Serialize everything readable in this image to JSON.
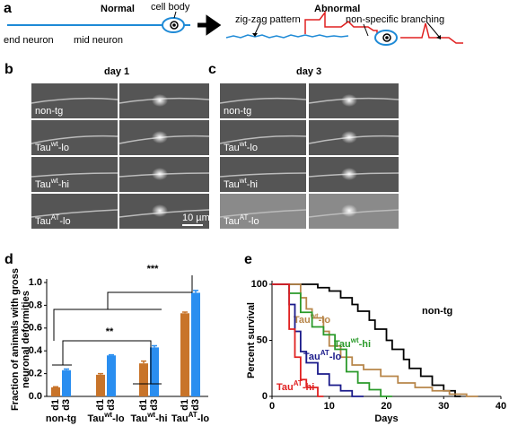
{
  "panel_a": {
    "letter": "a",
    "normal_title": "Normal",
    "abnormal_title": "Abnormal",
    "end_neuron": "end neuron",
    "mid_neuron": "mid neuron",
    "cell_body": "cell body",
    "zigzag": "zig-zag pattern",
    "branching": "non-specific branching"
  },
  "panel_b": {
    "letter": "b",
    "title": "day 1",
    "scale_bar": "10 µm",
    "rows": [
      [
        "non-tg"
      ],
      [
        "Tau",
        "wt",
        "-lo"
      ],
      [
        "Tau",
        "wt",
        "-hi"
      ],
      [
        "Tau",
        "AT",
        "-lo"
      ]
    ]
  },
  "panel_c": {
    "letter": "c",
    "title": "day 3",
    "rows": [
      [
        "non-tg"
      ],
      [
        "Tau",
        "wt",
        "-lo"
      ],
      [
        "Tau",
        "wt",
        "-hi"
      ],
      [
        "Tau",
        "AT",
        "-lo"
      ]
    ]
  },
  "chart_data": [
    {
      "type": "bar",
      "letter": "d",
      "ylabel": [
        "Fraction of animals with gross",
        "neuronal deformities"
      ],
      "categories": [
        [
          "non-tg"
        ],
        [
          "Tau",
          "wt",
          "-lo"
        ],
        [
          "Tau",
          "wt",
          "-hi"
        ],
        [
          "Tau",
          "AT",
          "-lo"
        ]
      ],
      "series": [
        {
          "name": "d1",
          "color": "#c8742a",
          "values": [
            0.08,
            0.19,
            0.29,
            0.73
          ],
          "errors": [
            0.005,
            0.01,
            0.02,
            0.01
          ]
        },
        {
          "name": "d3",
          "color": "#2a8ef0",
          "values": [
            0.23,
            0.36,
            0.43,
            0.91
          ],
          "errors": [
            0.01,
            0.005,
            0.015,
            0.02
          ]
        }
      ],
      "ylim": [
        0,
        1
      ],
      "yticks": [
        {
          "value": 0,
          "label": "0.0"
        },
        {
          "value": 0.2,
          "label": "0.2"
        },
        {
          "value": 0.4,
          "label": "0.4"
        },
        {
          "value": 0.6,
          "label": "0.6"
        },
        {
          "value": 0.8,
          "label": "0.8"
        },
        {
          "value": 1,
          "label": "1.0"
        }
      ],
      "annotations": [
        "**",
        "***"
      ]
    },
    {
      "type": "line",
      "letter": "e",
      "xlabel": "Days",
      "ylabel": "Percent survival",
      "xlim": [
        0,
        40
      ],
      "xticks": [
        0,
        10,
        20,
        30,
        40
      ],
      "ylim": [
        0,
        100
      ],
      "yticks": [
        0,
        50,
        100
      ],
      "series": [
        {
          "name": [
            "non-tg"
          ],
          "color": "#000000",
          "x": [
            0,
            8,
            8,
            10,
            10,
            12,
            12,
            14,
            14,
            15,
            15,
            17,
            17,
            18,
            18,
            20,
            20,
            21,
            21,
            23,
            23,
            24,
            24,
            26,
            26,
            28,
            28,
            30,
            30,
            32,
            32,
            33
          ],
          "values": [
            100,
            100,
            97,
            97,
            94,
            94,
            88,
            88,
            82,
            82,
            76,
            76,
            68,
            68,
            60,
            60,
            50,
            50,
            42,
            42,
            33,
            33,
            25,
            25,
            18,
            18,
            10,
            10,
            5,
            5,
            0,
            0
          ]
        },
        {
          "name": [
            "Tau",
            "wt",
            "-lo"
          ],
          "color": "#b8864a",
          "x": [
            0,
            5,
            5,
            6,
            6,
            7,
            7,
            9,
            9,
            10,
            10,
            12,
            12,
            14,
            14,
            16,
            16,
            19,
            19,
            22,
            22,
            25,
            25,
            28,
            28,
            31,
            31,
            34,
            34,
            36
          ],
          "values": [
            100,
            100,
            88,
            88,
            78,
            78,
            70,
            70,
            58,
            58,
            45,
            45,
            35,
            35,
            28,
            28,
            24,
            24,
            18,
            18,
            12,
            12,
            8,
            8,
            5,
            5,
            2,
            2,
            0,
            0
          ]
        },
        {
          "name": [
            "Tau",
            "wt",
            "-hi"
          ],
          "color": "#2a9a2a",
          "x": [
            0,
            3,
            3,
            5,
            5,
            7,
            7,
            9,
            9,
            11,
            11,
            13,
            13,
            15,
            15,
            17,
            17,
            19,
            19,
            21
          ],
          "values": [
            100,
            100,
            92,
            92,
            75,
            75,
            62,
            62,
            55,
            55,
            42,
            42,
            22,
            22,
            12,
            12,
            6,
            6,
            0,
            0
          ]
        },
        {
          "name": [
            "Tau",
            "AT",
            "-lo"
          ],
          "color": "#1a1a8a",
          "x": [
            0,
            3,
            3,
            4,
            4,
            5,
            5,
            6,
            6,
            8,
            8,
            10,
            10,
            12,
            12,
            14,
            14,
            16
          ],
          "values": [
            100,
            100,
            82,
            82,
            58,
            58,
            40,
            40,
            30,
            30,
            20,
            20,
            10,
            10,
            5,
            5,
            0,
            0
          ]
        },
        {
          "name": [
            "Tau",
            "AT",
            "-hi"
          ],
          "color": "#e02020",
          "x": [
            0,
            3,
            3,
            4,
            4,
            5,
            5,
            6,
            6,
            8,
            8,
            9
          ],
          "values": [
            100,
            100,
            60,
            60,
            35,
            35,
            15,
            15,
            8,
            8,
            0,
            0
          ]
        }
      ]
    }
  ]
}
